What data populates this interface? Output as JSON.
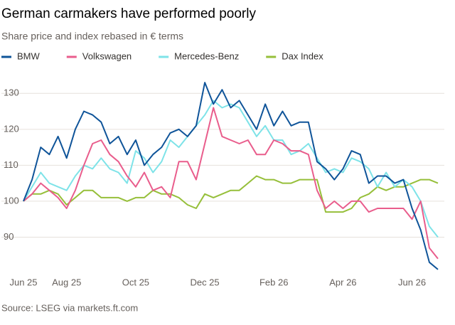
{
  "chart_data": {
    "type": "line",
    "title": "German carmakers have performed poorly",
    "subtitle": "Share price and index rebased in € terms",
    "source": "Source: LSEG via markets.ft.com",
    "categories": [
      "Jun 25",
      null,
      null,
      null,
      null,
      "Aug 25",
      null,
      null,
      null,
      null,
      null,
      null,
      null,
      "Oct 25",
      null,
      null,
      null,
      null,
      null,
      null,
      null,
      "Dec 25",
      null,
      null,
      null,
      null,
      null,
      null,
      null,
      "Feb 26",
      null,
      null,
      null,
      null,
      null,
      null,
      null,
      "Apr 26",
      null,
      null,
      null,
      null,
      null,
      null,
      null,
      "Jun 26",
      null,
      null,
      null
    ],
    "series": [
      {
        "name": "BMW",
        "color": "#0f5499",
        "values": [
          100,
          106,
          115,
          113,
          118,
          112,
          120,
          125,
          124,
          122,
          116,
          118,
          113,
          117,
          110,
          113,
          115,
          119,
          120,
          118,
          121,
          133,
          127,
          131,
          126,
          128,
          124,
          120,
          127,
          121,
          125,
          121,
          122,
          122,
          111,
          109,
          106,
          109,
          114,
          113,
          105,
          107,
          107,
          105,
          106,
          98,
          92,
          83,
          81
        ]
      },
      {
        "name": "Volkswagen",
        "color": "#e95d8c",
        "values": [
          100,
          102,
          105,
          103,
          101,
          98,
          103,
          110,
          116,
          117,
          113,
          111,
          107,
          104,
          108,
          103,
          104,
          101,
          111,
          111,
          106,
          116,
          126,
          118,
          117,
          116,
          117,
          113,
          113,
          117,
          116,
          114,
          114,
          113,
          103,
          98,
          100,
          98,
          100,
          100,
          97,
          98,
          98,
          98,
          98,
          95,
          100,
          87,
          84
        ]
      },
      {
        "name": "Mercedes-Benz",
        "color": "#7ee3e8",
        "values": [
          100,
          104,
          108,
          105,
          104,
          103,
          107,
          110,
          109,
          112,
          109,
          108,
          105,
          114,
          112,
          108,
          111,
          117,
          115,
          118,
          121,
          124,
          128,
          126,
          127,
          126,
          122,
          118,
          121,
          117,
          117,
          113,
          114,
          116,
          112,
          108,
          109,
          108,
          112,
          111,
          109,
          104,
          108,
          104,
          106,
          104,
          100,
          93,
          90
        ]
      },
      {
        "name": "Dax Index",
        "color": "#96bf3a",
        "values": [
          100,
          102,
          102,
          103,
          102,
          99,
          101,
          103,
          103,
          101,
          101,
          101,
          100,
          101,
          101,
          103,
          102,
          102,
          101,
          99,
          98,
          102,
          101,
          102,
          103,
          103,
          105,
          107,
          106,
          106,
          105,
          105,
          106,
          106,
          106,
          97,
          97,
          97,
          98,
          101,
          102,
          104,
          103,
          104,
          104,
          105,
          106,
          106,
          105
        ]
      }
    ],
    "ylim": [
      80,
      135
    ],
    "yticks": [
      90,
      100,
      110,
      120,
      130
    ],
    "grid": true,
    "legend": "top-left"
  }
}
